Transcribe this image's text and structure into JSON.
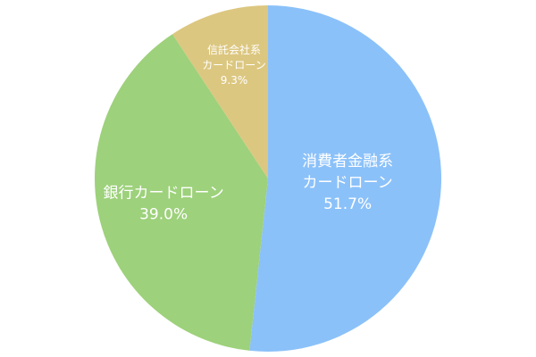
{
  "chart_data": {
    "type": "pie",
    "categories": [
      [
        "消費者金融系",
        "カードローン"
      ],
      [
        "銀行カードローン"
      ],
      [
        "信託会社系",
        "カードローン"
      ]
    ],
    "values": [
      51.7,
      39.0,
      9.3
    ],
    "value_labels": [
      "51.7%",
      "39.0%",
      "9.3%"
    ],
    "colors": [
      "#8bc1f9",
      "#9dd17b",
      "#dcc780"
    ]
  }
}
